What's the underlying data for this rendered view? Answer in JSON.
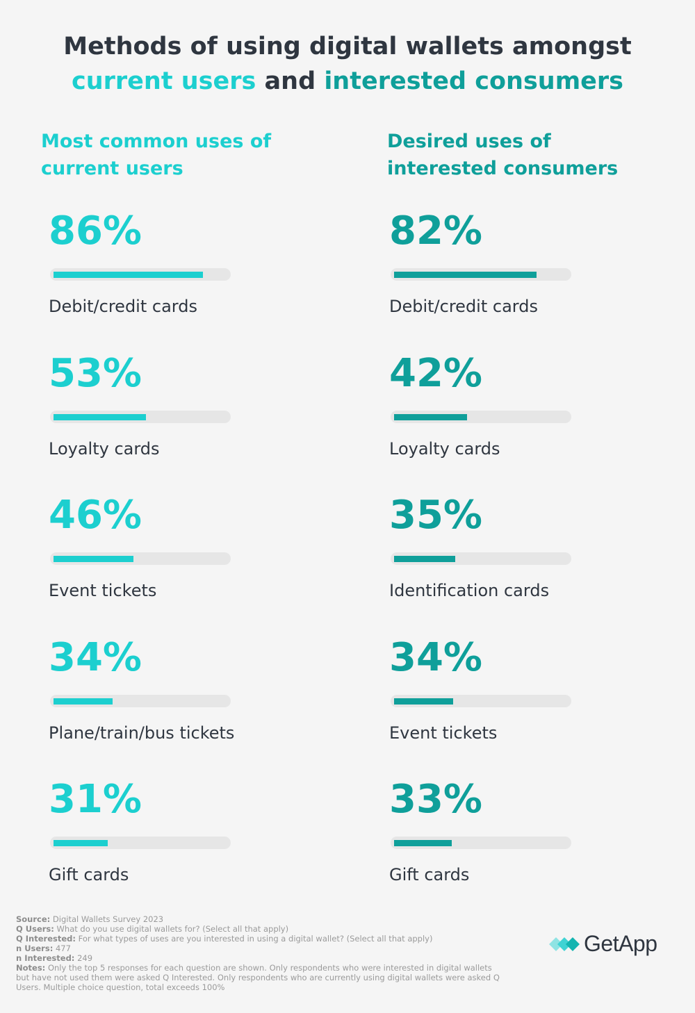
{
  "title": {
    "line1": "Methods of using digital wallets amongst",
    "highlight_users": "current users",
    "connector": "and",
    "highlight_interested": "interested consumers"
  },
  "columns": {
    "users_heading": "Most common uses of current users",
    "interested_heading": "Desired uses of interested consumers"
  },
  "chart_data": [
    {
      "type": "bar",
      "title": "Most common uses of current users",
      "categories": [
        "Debit/credit cards",
        "Loyalty cards",
        "Event tickets",
        "Plane/train/bus tickets",
        "Gift cards"
      ],
      "values": [
        86,
        53,
        46,
        34,
        31
      ],
      "value_labels": [
        "86%",
        "53%",
        "46%",
        "34%",
        "31%"
      ],
      "ylim": [
        0,
        100
      ],
      "color": "#1ccfcf"
    },
    {
      "type": "bar",
      "title": "Desired uses of interested consumers",
      "categories": [
        "Debit/credit cards",
        "Loyalty cards",
        "Identification cards",
        "Event tickets",
        "Gift cards"
      ],
      "values": [
        82,
        42,
        35,
        34,
        33
      ],
      "value_labels": [
        "82%",
        "42%",
        "35%",
        "34%",
        "33%"
      ],
      "ylim": [
        0,
        100
      ],
      "color": "#0f9f9a"
    }
  ],
  "notes": {
    "source_label": "Source:",
    "source": "Digital Wallets Survey 2023",
    "q_users_label": "Q Users:",
    "q_users": "What do you use digital wallets for? (Select all that apply)",
    "q_interested_label": "Q Interested:",
    "q_interested": "For what types of uses are you interested in using a digital wallet? (Select all that apply)",
    "n_users_label": "n Users:",
    "n_users": "477",
    "n_interested_label": "n Interested:",
    "n_interested": "249",
    "notes_label": "Notes:",
    "notes": "Only the top 5 responses for each question are shown. Only respondents who were interested in digital wallets but have not used them were asked Q Interested. Only respondents who are currently using digital wallets were asked Q Users. Multiple choice question, total exceeds 100%"
  },
  "logo": {
    "text": "GetApp",
    "icon": "getapp-chevrons-icon"
  },
  "colors": {
    "users": "#1ccfcf",
    "interested": "#0f9f9a",
    "text": "#2f3640",
    "track": "#e6e6e6"
  }
}
